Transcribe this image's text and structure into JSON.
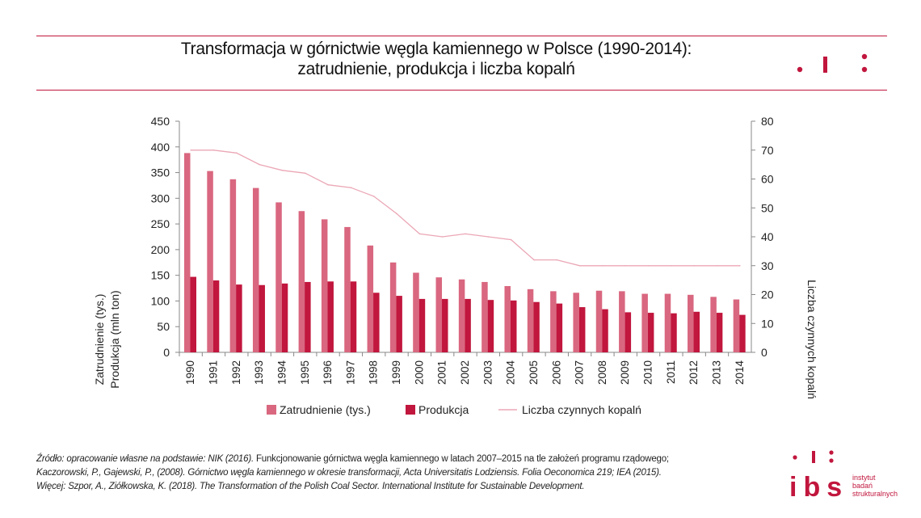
{
  "title": {
    "line1": "Transformacja w górnictwie węgla kamiennego w Polsce (1990-2014):",
    "line2": "zatrudnienie, produkcja i liczba kopalń"
  },
  "colors": {
    "accent": "#c1163d",
    "employment": "#d9677f",
    "production": "#c1163d",
    "mines_line": "#eba7b6"
  },
  "chart_data": {
    "type": "bar",
    "categories": [
      "1990",
      "1991",
      "1992",
      "1993",
      "1994",
      "1995",
      "1996",
      "1997",
      "1998",
      "1999",
      "2000",
      "2001",
      "2002",
      "2003",
      "2004",
      "2005",
      "2006",
      "2007",
      "2008",
      "2009",
      "2010",
      "2011",
      "2012",
      "2013",
      "2014"
    ],
    "series": [
      {
        "name": "Zatrudnienie (tys.)",
        "type": "bar",
        "axis": "left",
        "values": [
          388,
          353,
          337,
          320,
          292,
          275,
          259,
          244,
          208,
          175,
          155,
          146,
          142,
          137,
          129,
          123,
          119,
          116,
          120,
          119,
          114,
          114,
          112,
          108,
          103
        ]
      },
      {
        "name": "Produkcja",
        "type": "bar",
        "axis": "left",
        "values": [
          147,
          140,
          132,
          131,
          134,
          137,
          138,
          138,
          116,
          110,
          104,
          104,
          104,
          102,
          101,
          98,
          95,
          88,
          84,
          78,
          77,
          76,
          79,
          77,
          73
        ]
      },
      {
        "name": "Liczba czynnych kopalń",
        "type": "line",
        "axis": "right",
        "values": [
          70,
          70,
          69,
          65,
          63,
          62,
          58,
          57,
          54,
          48,
          41,
          40,
          41,
          40,
          39,
          32,
          32,
          30,
          30,
          30,
          30,
          30,
          30,
          30,
          30
        ]
      }
    ],
    "ylabel_left": [
      "Zatrudnienie (tys.)",
      "Produkcja (mln ton)"
    ],
    "ylabel_right": "Liczba czynnych kopalń",
    "ylim_left": [
      0,
      450
    ],
    "yticks_left": [
      0,
      50,
      100,
      150,
      200,
      250,
      300,
      350,
      400,
      450
    ],
    "ylim_right": [
      0,
      80
    ],
    "yticks_right": [
      0,
      10,
      20,
      30,
      40,
      50,
      60,
      70,
      80
    ],
    "grid": false,
    "legend_position": "bottom-center"
  },
  "legend": {
    "employment": "Zatrudnienie (tys.)",
    "production": "Produkcja",
    "mines": "Liczba czynnych kopalń"
  },
  "source": {
    "line1_italic": "Źródło: opracowanie własne na podstawie: NIK (2016).",
    "line1_normal": "Funkcjonowanie górnictwa węgla kamiennego w latach 2007–2015 na tle założeń programu rządowego;",
    "line2": "Kaczorowski, P., Gajewski, P., (2008). Górnictwo węgla kamiennego w okresie transformacji, Acta Universitatis Lodziensis. Folia Oeconomica 219; IEA (2015).",
    "line3": "Więcej: Szpor, A., Ziółkowska, K. (2018). The Transformation of the Polish Coal Sector. International Institute for Sustainable Development."
  },
  "logo": {
    "letters": "ibs",
    "line1": "instytut",
    "line2": "badań",
    "line3": "strukturalnych"
  }
}
